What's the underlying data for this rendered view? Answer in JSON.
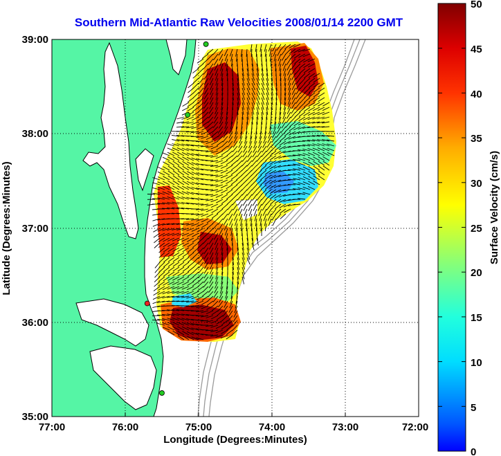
{
  "chart_data": {
    "type": "heatmap",
    "title": "Southern Mid-Atlantic Raw Velocities 2008/01/14 2200 GMT",
    "xlabel": "Longitude (Degrees:Minutes)",
    "ylabel": "Latitude (Degrees:Minutes)",
    "x_ticks": [
      "77:00",
      "76:00",
      "75:00",
      "74:00",
      "73:00",
      "72:00"
    ],
    "x_tick_values": [
      -77,
      -76,
      -75,
      -74,
      -73,
      -72
    ],
    "y_ticks": [
      "39:00",
      "38:00",
      "37:00",
      "36:00",
      "35:00"
    ],
    "y_tick_values": [
      39,
      38,
      37,
      36,
      35
    ],
    "xlim": [
      -77,
      -72
    ],
    "ylim": [
      35,
      39
    ],
    "grid": true,
    "colorbar": {
      "label": "Surface Velocity (cm/s)",
      "range": [
        0,
        50
      ],
      "ticks": [
        "50",
        "45",
        "40",
        "35",
        "30",
        "25",
        "20",
        "15",
        "10",
        "5",
        "0"
      ],
      "tick_values": [
        50,
        45,
        40,
        35,
        30,
        25,
        20,
        15,
        10,
        5,
        0
      ]
    },
    "stations": [
      {
        "lon": -74.9,
        "lat": 38.95,
        "color": "#22cc22"
      },
      {
        "lon": -75.15,
        "lat": 38.2,
        "color": "#22cc22"
      },
      {
        "lon": -75.7,
        "lat": 36.2,
        "color": "#ee2222"
      },
      {
        "lon": -75.5,
        "lat": 35.25,
        "color": "#22cc22"
      }
    ]
  },
  "colors": {
    "land": "#55f5a5",
    "coast": "#000000",
    "bathymetry": "#9a9a9a",
    "title": "#0000ee"
  }
}
